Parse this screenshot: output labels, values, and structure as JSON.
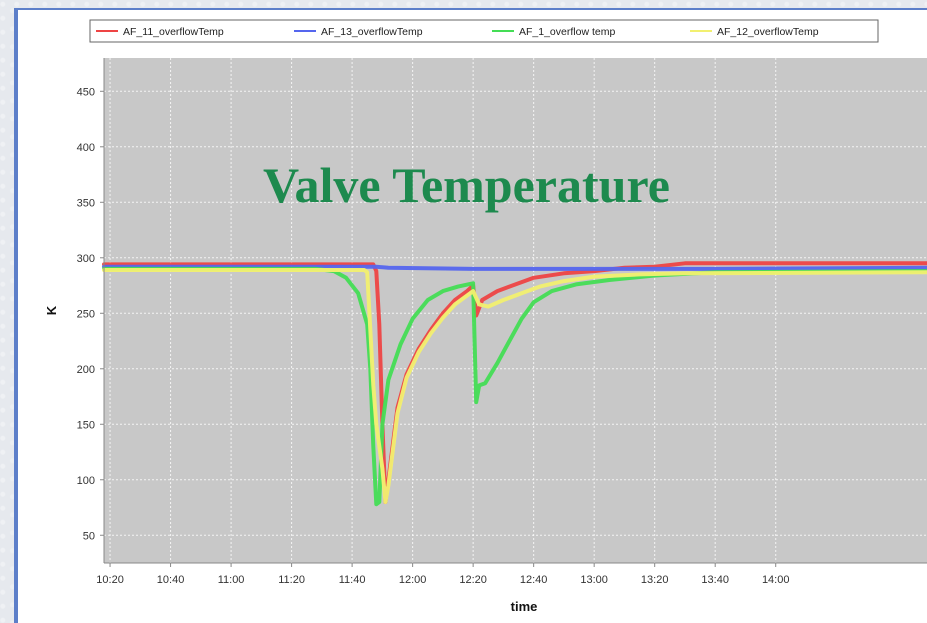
{
  "overlay_title": {
    "text": "Valve Temperature",
    "color": "#1d8a4e"
  },
  "chart_data": {
    "type": "line",
    "title": "",
    "xlabel": "time",
    "ylabel": "K",
    "ylim": [
      25,
      480
    ],
    "yticks": [
      50,
      100,
      150,
      200,
      250,
      300,
      350,
      400,
      450
    ],
    "xlim": [
      "10:18",
      "14:50"
    ],
    "xticks": [
      "10:20",
      "10:40",
      "11:00",
      "11:20",
      "11:40",
      "12:00",
      "12:20",
      "12:40",
      "13:00",
      "13:20",
      "13:40",
      "14:00"
    ],
    "grid": true,
    "legend_position": "top",
    "plot_background": "#c8c8c8",
    "series": [
      {
        "name": "AF_11_overflowTemp",
        "color": "#ee4444",
        "points": [
          [
            "10:18",
            294
          ],
          [
            "11:30",
            294
          ],
          [
            "11:47",
            294
          ],
          [
            "11:48",
            288
          ],
          [
            "11:49",
            240
          ],
          [
            "11:50",
            150
          ],
          [
            "11:51",
            80
          ],
          [
            "11:52",
            100
          ],
          [
            "11:55",
            165
          ],
          [
            "11:58",
            195
          ],
          [
            "12:02",
            218
          ],
          [
            "12:06",
            235
          ],
          [
            "12:10",
            250
          ],
          [
            "12:14",
            262
          ],
          [
            "12:18",
            270
          ],
          [
            "12:20",
            275
          ],
          [
            "12:21",
            248
          ],
          [
            "12:23",
            262
          ],
          [
            "12:28",
            270
          ],
          [
            "12:34",
            276
          ],
          [
            "12:40",
            282
          ],
          [
            "12:50",
            286
          ],
          [
            "13:00",
            288
          ],
          [
            "13:10",
            291
          ],
          [
            "13:20",
            292
          ],
          [
            "13:30",
            295
          ],
          [
            "14:50",
            295
          ]
        ]
      },
      {
        "name": "AF_13_overflowTemp",
        "color": "#5566ee",
        "points": [
          [
            "10:18",
            292
          ],
          [
            "11:48",
            292
          ],
          [
            "11:52",
            291
          ],
          [
            "12:20",
            290
          ],
          [
            "12:40",
            290
          ],
          [
            "13:00",
            290
          ],
          [
            "13:40",
            290
          ],
          [
            "14:50",
            291
          ]
        ]
      },
      {
        "name": "AF_1_overflow temp",
        "color": "#44dd55",
        "points": [
          [
            "10:18",
            290
          ],
          [
            "11:28",
            290
          ],
          [
            "11:34",
            288
          ],
          [
            "11:38",
            282
          ],
          [
            "11:42",
            268
          ],
          [
            "11:45",
            240
          ],
          [
            "11:46",
            200
          ],
          [
            "11:47",
            130
          ],
          [
            "11:48",
            78
          ],
          [
            "11:49",
            80
          ],
          [
            "11:50",
            150
          ],
          [
            "11:52",
            190
          ],
          [
            "11:56",
            222
          ],
          [
            "12:00",
            245
          ],
          [
            "12:05",
            262
          ],
          [
            "12:10",
            270
          ],
          [
            "12:15",
            274
          ],
          [
            "12:20",
            277
          ],
          [
            "12:21",
            170
          ],
          [
            "12:22",
            185
          ],
          [
            "12:24",
            187
          ],
          [
            "12:28",
            205
          ],
          [
            "12:32",
            225
          ],
          [
            "12:36",
            245
          ],
          [
            "12:40",
            260
          ],
          [
            "12:46",
            270
          ],
          [
            "12:54",
            276
          ],
          [
            "13:05",
            280
          ],
          [
            "13:20",
            284
          ],
          [
            "13:40",
            287
          ],
          [
            "14:50",
            288
          ]
        ]
      },
      {
        "name": "AF_12_overflowTemp",
        "color": "#f2f070",
        "points": [
          [
            "10:18",
            289
          ],
          [
            "11:44",
            289
          ],
          [
            "11:45",
            287
          ],
          [
            "11:47",
            185
          ],
          [
            "11:48",
            150
          ],
          [
            "11:50",
            110
          ],
          [
            "11:51",
            80
          ],
          [
            "11:52",
            95
          ],
          [
            "11:55",
            160
          ],
          [
            "11:58",
            192
          ],
          [
            "12:02",
            215
          ],
          [
            "12:06",
            232
          ],
          [
            "12:10",
            246
          ],
          [
            "12:14",
            258
          ],
          [
            "12:18",
            266
          ],
          [
            "12:20",
            270
          ],
          [
            "12:22",
            258
          ],
          [
            "12:25",
            256
          ],
          [
            "12:30",
            262
          ],
          [
            "12:36",
            268
          ],
          [
            "12:42",
            274
          ],
          [
            "12:50",
            279
          ],
          [
            "13:00",
            283
          ],
          [
            "13:15",
            285
          ],
          [
            "13:30",
            286
          ],
          [
            "14:50",
            287
          ]
        ]
      }
    ]
  }
}
